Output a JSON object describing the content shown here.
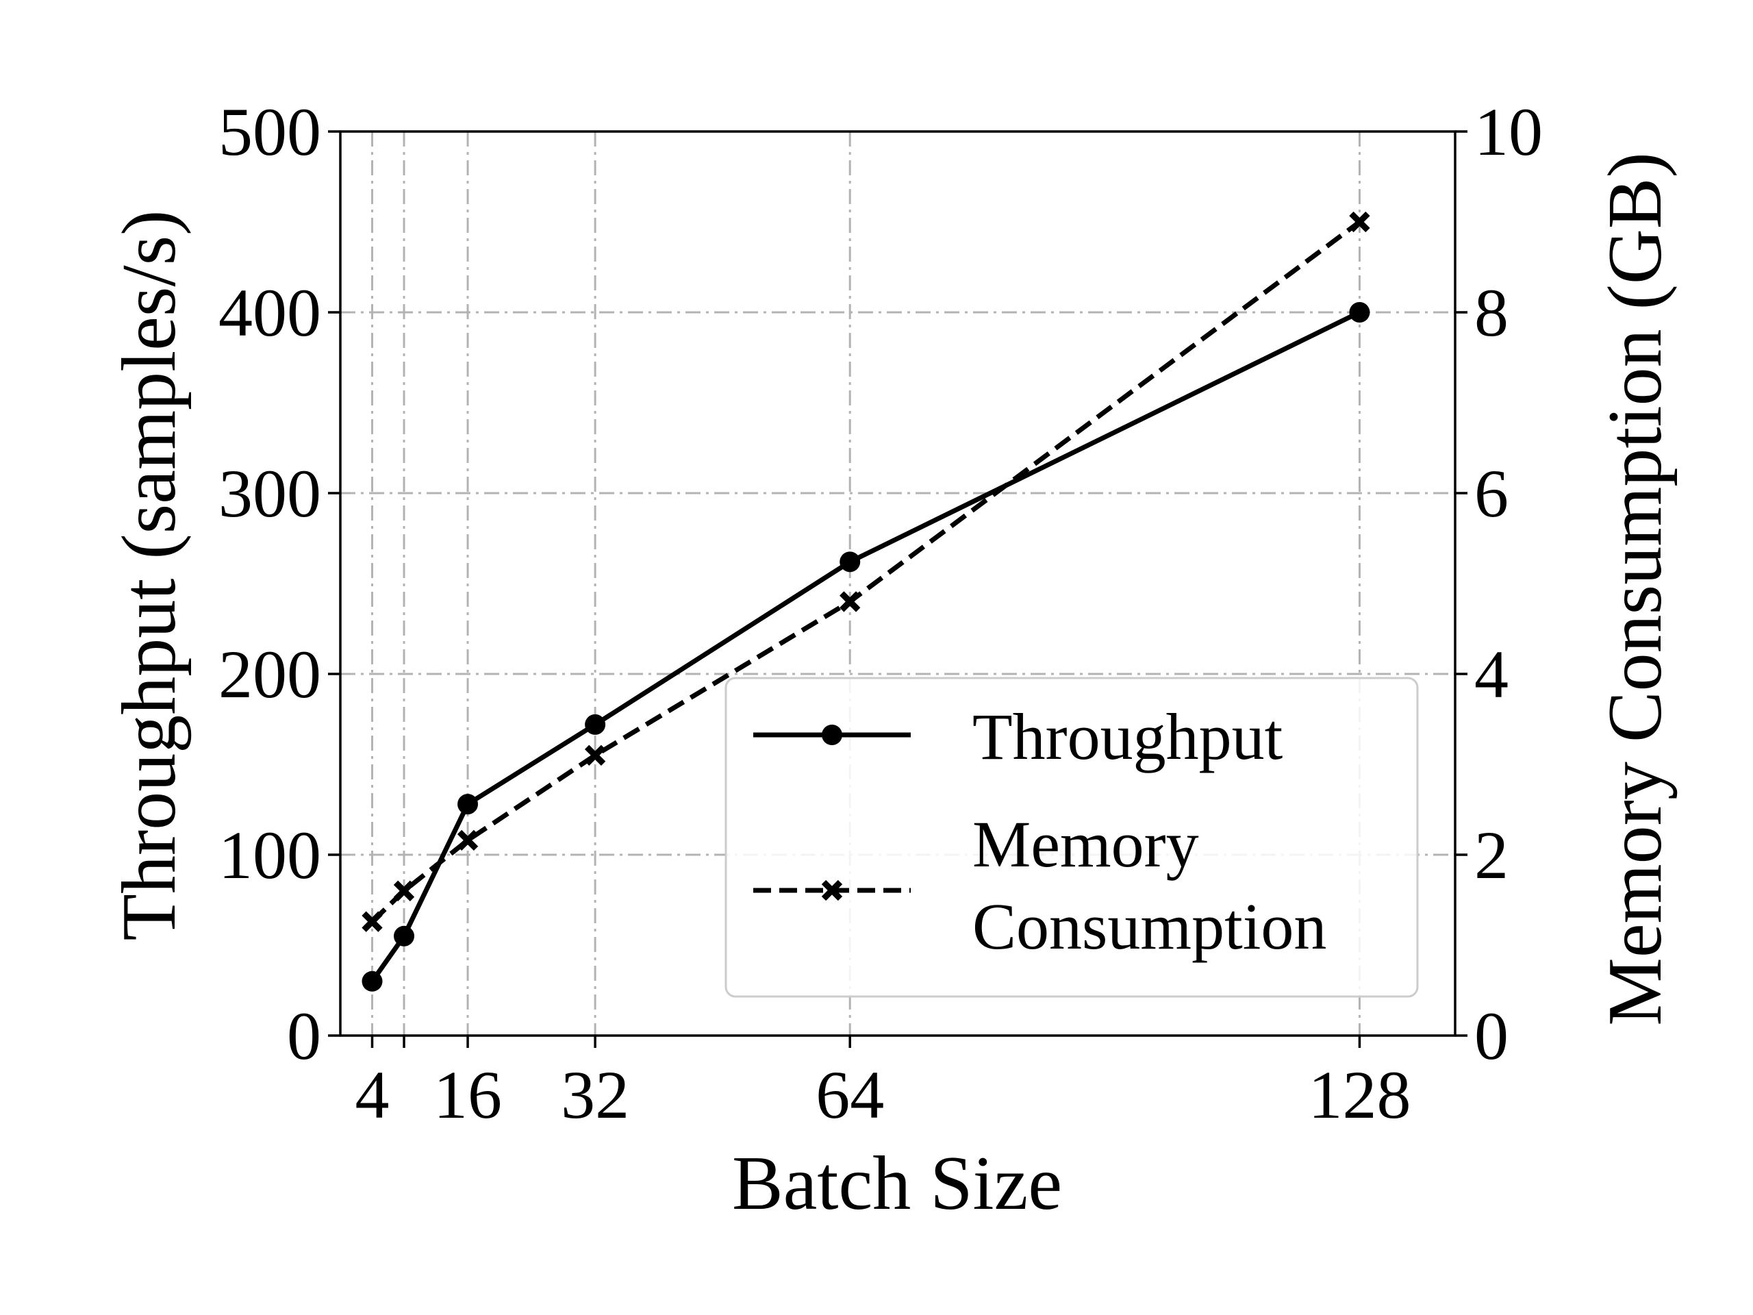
{
  "chart_data": {
    "type": "line",
    "xlabel": "Batch Size",
    "ylabel_left": "Throughput (samples/s)",
    "ylabel_right": "Memory Consumption (GB)",
    "x": [
      4,
      8,
      16,
      32,
      64,
      128
    ],
    "x_tick_values": [
      4,
      16,
      32,
      64,
      128
    ],
    "x_tick_labels": [
      "4",
      "16",
      "32",
      "64",
      "128"
    ],
    "xlim": [
      0,
      140
    ],
    "ylim_left": [
      0,
      500
    ],
    "ylim_right": [
      0,
      10
    ],
    "y_ticks_left": [
      "0",
      "100",
      "200",
      "300",
      "400",
      "500"
    ],
    "y_ticks_right": [
      "0",
      "2",
      "4",
      "6",
      "8",
      "10"
    ],
    "grid": true,
    "legend_position": "lower-right",
    "series": [
      {
        "name": "Throughput",
        "axis": "left",
        "style": "solid",
        "marker": "circle",
        "color": "#000000",
        "values": [
          30,
          55,
          128,
          172,
          262,
          400
        ]
      },
      {
        "name": "Memory Consumption",
        "axis": "right",
        "style": "dashed",
        "marker": "x",
        "color": "#000000",
        "values": [
          1.26,
          1.6,
          2.16,
          3.1,
          4.8,
          9.0
        ]
      }
    ],
    "legend_labels": {
      "throughput": "Throughput",
      "memory_line1": "Memory",
      "memory_line2": "Consumption"
    }
  }
}
